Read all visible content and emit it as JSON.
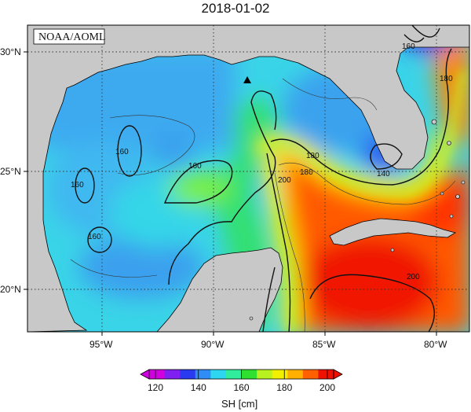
{
  "title": "2018-01-02",
  "credit": "NOAA/AOML",
  "lat_labels": [
    "30°N",
    "25°N",
    "20°N"
  ],
  "lon_labels": [
    "95°W",
    "90°W",
    "85°W",
    "80°W"
  ],
  "contour_labels": [
    "160",
    "160",
    "160",
    "160",
    "140",
    "180",
    "180",
    "180",
    "200",
    "200",
    "160"
  ],
  "colorbar": {
    "ticks": [
      "120",
      "140",
      "160",
      "180",
      "200"
    ],
    "label": "SH [cm]",
    "colors": [
      "#d100e0",
      "#8020f0",
      "#2a3af0",
      "#2f8df5",
      "#2ed6ef",
      "#30ec9c",
      "#30e030",
      "#b8f020",
      "#f0f000",
      "#ffb000",
      "#ff6000",
      "#f01000"
    ]
  },
  "marker": "triangle-marker"
}
